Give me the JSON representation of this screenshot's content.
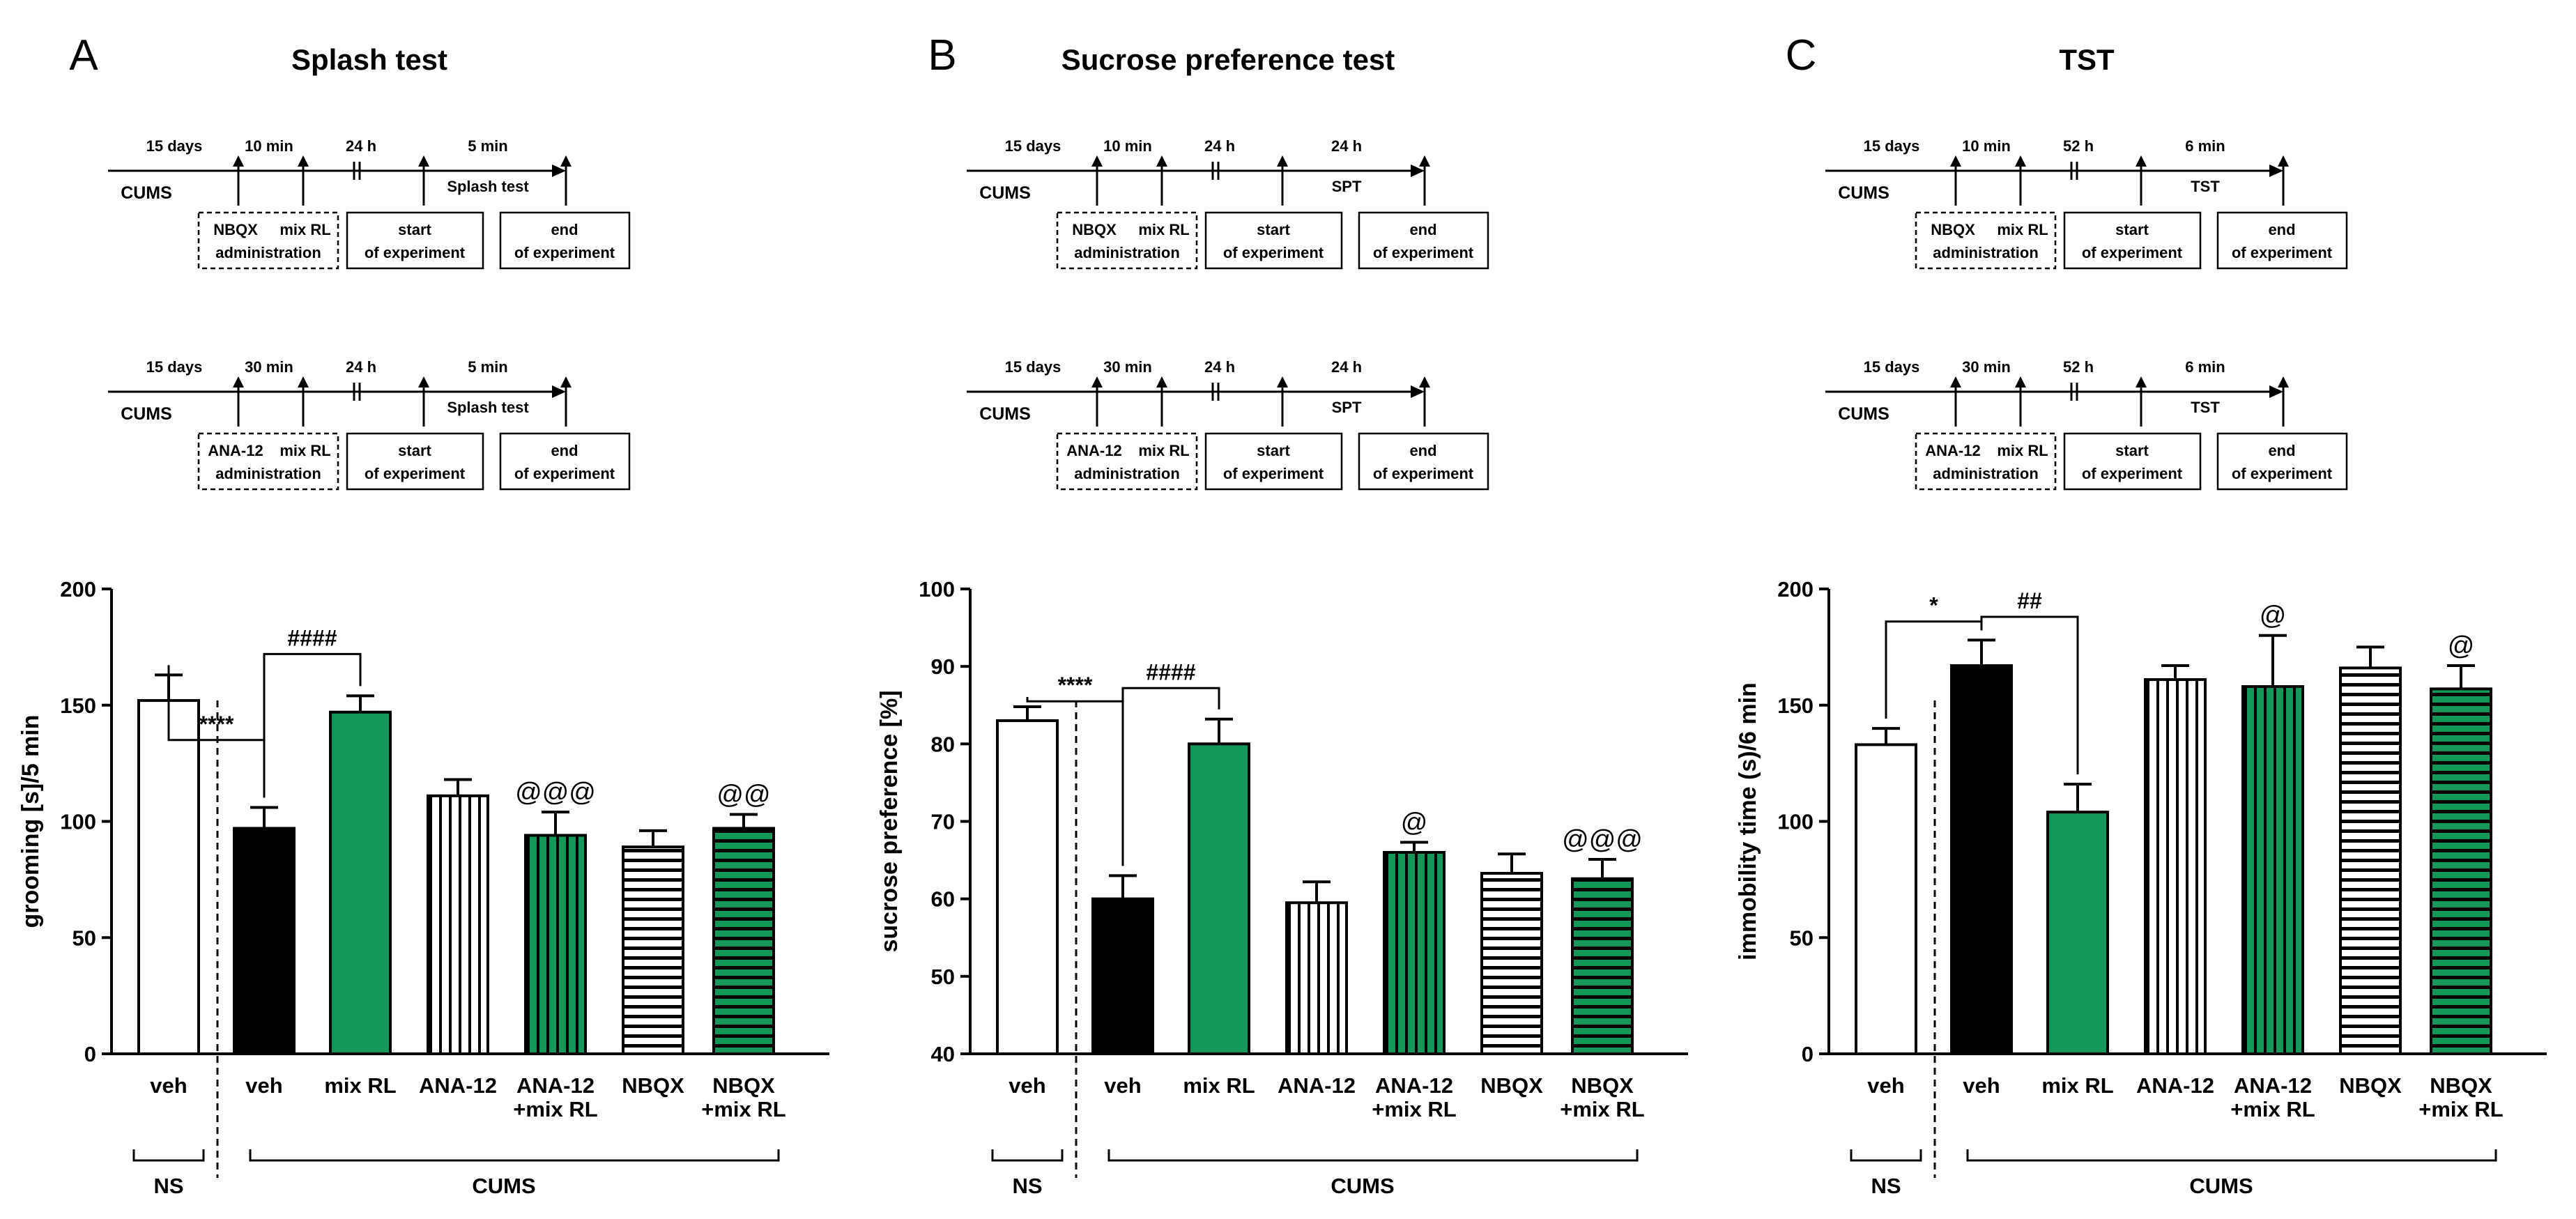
{
  "colors": {
    "black": "#000000",
    "green": "#13985a",
    "white": "#ffffff"
  },
  "schedule": {
    "cums": "CUMS",
    "start_box": [
      "start",
      "of experiment"
    ],
    "end_box": [
      "end",
      "of experiment"
    ]
  },
  "shared_labels": {
    "ns_group": "NS",
    "cums_group": "CUMS"
  },
  "chart_data": [
    {
      "type": "bar",
      "letter": "A",
      "title": "Splash test",
      "ylabel": "grooming [s]/5 min",
      "ylim": [
        0,
        200
      ],
      "yticks": [
        0,
        50,
        100,
        150,
        200
      ],
      "schedules": [
        {
          "d1": "15 days",
          "d2": "10 min",
          "d3": "24 h",
          "d4": "5 min",
          "drug": "NBQX",
          "drug_sub": "administration",
          "mix": "mix RL",
          "test": "Splash test"
        },
        {
          "d1": "15 days",
          "d2": "30 min",
          "d3": "24 h",
          "d4": "5 min",
          "drug": "ANA-12",
          "drug_sub": "administration",
          "mix": "mix RL",
          "test": "Splash test"
        }
      ],
      "categories": [
        [
          "veh"
        ],
        [
          "veh"
        ],
        [
          "mix RL"
        ],
        [
          "ANA-12"
        ],
        [
          "ANA-12",
          "+mix RL"
        ],
        [
          "NBQX"
        ],
        [
          "NBQX",
          "+mix RL"
        ]
      ],
      "values": [
        152,
        97,
        147,
        111,
        94,
        89,
        97
      ],
      "errors": [
        11,
        9,
        7,
        7,
        10,
        7,
        6
      ],
      "fills": [
        "white",
        "black",
        "green",
        "vstripe",
        "vstripe-green",
        "hstripe",
        "hstripe-green"
      ],
      "sig_brackets": [
        {
          "label": "****",
          "from": 0,
          "to": 1,
          "level": 135
        },
        {
          "label": "####",
          "from": 1,
          "to": 2,
          "level": 172
        }
      ],
      "sig_marks": [
        {
          "label": "@@@",
          "bar": 4
        },
        {
          "label": "@@",
          "bar": 6
        }
      ]
    },
    {
      "type": "bar",
      "letter": "B",
      "title": "Sucrose preference test",
      "ylabel": "sucrose preference [%]",
      "ylim": [
        40,
        100
      ],
      "yticks": [
        40,
        50,
        60,
        70,
        80,
        90,
        100
      ],
      "schedules": [
        {
          "d1": "15 days",
          "d2": "10 min",
          "d3": "24 h",
          "d4": "24 h",
          "drug": "NBQX",
          "drug_sub": "administration",
          "mix": "mix RL",
          "test": "SPT"
        },
        {
          "d1": "15 days",
          "d2": "30 min",
          "d3": "24 h",
          "d4": "24 h",
          "drug": "ANA-12",
          "drug_sub": "administration",
          "mix": "mix RL",
          "test": "SPT"
        }
      ],
      "categories": [
        [
          "veh"
        ],
        [
          "veh"
        ],
        [
          "mix RL"
        ],
        [
          "ANA-12"
        ],
        [
          "ANA-12",
          "+mix RL"
        ],
        [
          "NBQX"
        ],
        [
          "NBQX",
          "+mix RL"
        ]
      ],
      "values": [
        83,
        60,
        80,
        59.5,
        66,
        63.3,
        62.6
      ],
      "errors": [
        1.8,
        3,
        3.2,
        2.7,
        1.3,
        2.5,
        2.5
      ],
      "fills": [
        "white",
        "black",
        "green",
        "vstripe",
        "vstripe-green",
        "hstripe",
        "hstripe-green"
      ],
      "sig_brackets": [
        {
          "label": "****",
          "from": 0,
          "to": 1,
          "level": 85.5
        },
        {
          "label": "####",
          "from": 1,
          "to": 2,
          "level": 87.2
        }
      ],
      "sig_marks": [
        {
          "label": "@",
          "bar": 4
        },
        {
          "label": "@@@",
          "bar": 6
        }
      ]
    },
    {
      "type": "bar",
      "letter": "C",
      "title": "TST",
      "ylabel": "immobility time (s)/6 min",
      "ylim": [
        0,
        200
      ],
      "yticks": [
        0,
        50,
        100,
        150,
        200
      ],
      "schedules": [
        {
          "d1": "15 days",
          "d2": "10 min",
          "d3": "52 h",
          "d4": "6 min",
          "drug": "NBQX",
          "drug_sub": "administration",
          "mix": "mix RL",
          "test": "TST"
        },
        {
          "d1": "15 days",
          "d2": "30 min",
          "d3": "52 h",
          "d4": "6 min",
          "drug": "ANA-12",
          "drug_sub": "administration",
          "mix": "mix RL",
          "test": "TST"
        }
      ],
      "categories": [
        [
          "veh"
        ],
        [
          "veh"
        ],
        [
          "mix RL"
        ],
        [
          "ANA-12"
        ],
        [
          "ANA-12",
          "+mix RL"
        ],
        [
          "NBQX"
        ],
        [
          "NBQX",
          "+mix RL"
        ]
      ],
      "values": [
        133,
        167,
        104,
        161,
        158,
        166,
        157
      ],
      "errors": [
        7,
        11,
        12,
        6,
        22,
        9,
        10
      ],
      "fills": [
        "white",
        "black",
        "green",
        "vstripe",
        "vstripe-green",
        "hstripe",
        "hstripe-green"
      ],
      "sig_brackets": [
        {
          "label": "*",
          "from": 0,
          "to": 1,
          "level": 186
        },
        {
          "label": "##",
          "from": 1,
          "to": 2,
          "level": 188
        }
      ],
      "sig_marks": [
        {
          "label": "@",
          "bar": 4
        },
        {
          "label": "@",
          "bar": 6
        }
      ]
    }
  ]
}
